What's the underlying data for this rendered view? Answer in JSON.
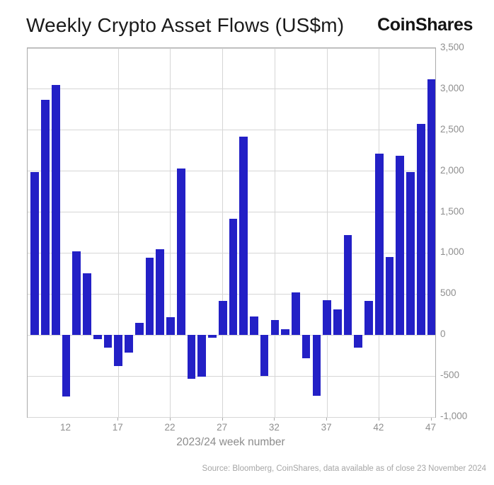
{
  "header": {
    "title": "Weekly Crypto Asset Flows (US$m)",
    "logo": "CoinShares"
  },
  "footer": {
    "source": "Source: Bloomberg, CoinShares, data available as of close 23 November 2024"
  },
  "colors": {
    "bar": "#2320c6",
    "grid": "#d6d6d6",
    "frame": "#ababab",
    "tick_text": "#8f8f8f",
    "title_text": "#1a1a1a",
    "source_text": "#a6a6a6"
  },
  "chart_data": {
    "type": "bar",
    "title": "Weekly Crypto Asset Flows (US$m)",
    "xlabel": "2023/24 week number",
    "ylabel": "",
    "x": [
      9,
      10,
      11,
      12,
      13,
      14,
      15,
      16,
      17,
      18,
      19,
      20,
      21,
      22,
      23,
      24,
      25,
      26,
      27,
      28,
      29,
      30,
      31,
      32,
      33,
      34,
      35,
      36,
      37,
      38,
      39,
      40,
      41,
      42,
      43,
      44,
      45,
      46,
      47
    ],
    "values": [
      1990,
      2870,
      3050,
      -750,
      1020,
      750,
      -50,
      -150,
      -380,
      -210,
      150,
      940,
      1050,
      215,
      2030,
      -530,
      -510,
      -30,
      420,
      1420,
      2420,
      230,
      -500,
      180,
      70,
      520,
      -280,
      -740,
      425,
      310,
      1220,
      -150,
      420,
      2210,
      950,
      2190,
      1990,
      2580,
      3120
    ],
    "ylim": [
      -1000,
      3500
    ],
    "xdomain": [
      8.3,
      47.37
    ],
    "grid": true,
    "legend_position": "none",
    "yticks": [
      -1000,
      -500,
      0,
      500,
      1000,
      1500,
      2000,
      2500,
      3000,
      3500
    ],
    "ytick_labels": [
      "-1,000",
      "-500",
      "0",
      "500",
      "1,000",
      "1,500",
      "2,000",
      "2,500",
      "3,000",
      "3,500"
    ],
    "xticks": [
      12,
      17,
      22,
      27,
      32,
      37,
      42,
      47
    ],
    "grid_weeks": [
      17,
      22,
      27,
      32,
      37,
      42
    ],
    "tick_weeks": [
      17,
      22,
      27,
      32,
      37,
      42,
      47
    ]
  }
}
